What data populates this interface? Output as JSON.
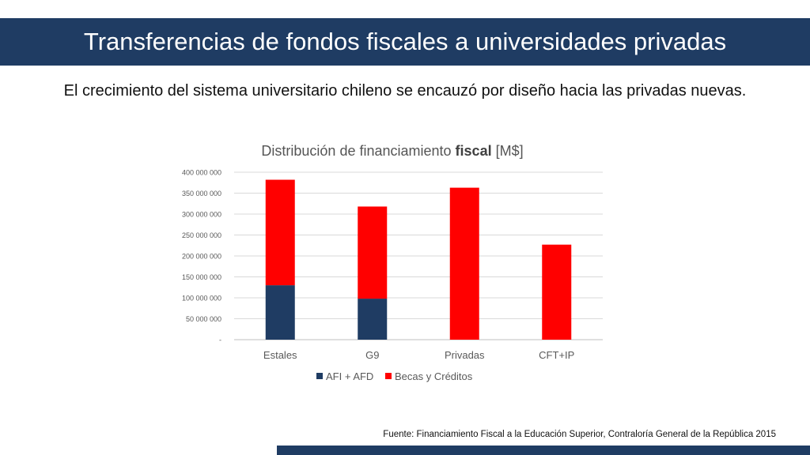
{
  "slide": {
    "title": "Transferencias de fondos fiscales a universidades privadas",
    "subtitle": "El crecimiento del sistema universitario chileno se encauzó por diseño hacia las privadas nuevas.",
    "source": "Fuente: Financiamiento Fiscal a la Educación Superior, Contraloría General de la República 2015"
  },
  "colors": {
    "header_bar": "#1f3c63",
    "series_afi": "#1f3c63",
    "series_becas": "#ff0000"
  },
  "chart_data": {
    "type": "bar",
    "stacked": true,
    "title_prefix": "Distribución de financiamiento ",
    "title_bold": "fiscal",
    "title_suffix": " [M$]",
    "categories": [
      "Estales",
      "G9",
      "Privadas",
      "CFT+IP"
    ],
    "series": [
      {
        "name": "AFI + AFD",
        "color": "#1f3c63",
        "values": [
          130000000,
          98000000,
          0,
          0
        ]
      },
      {
        "name": "Becas y Créditos",
        "color": "#ff0000",
        "values": [
          252000000,
          220000000,
          363000000,
          227000000
        ]
      }
    ],
    "ylim": [
      0,
      400000000
    ],
    "y_ticks": [
      0,
      50000000,
      100000000,
      150000000,
      200000000,
      250000000,
      300000000,
      350000000,
      400000000
    ],
    "y_tick_labels": [
      "-",
      "50 000 000",
      "100 000 000",
      "150 000 000",
      "200 000 000",
      "250 000 000",
      "300 000 000",
      "350 000 000",
      "400 000 000"
    ],
    "grid": true,
    "legend_position": "bottom"
  }
}
